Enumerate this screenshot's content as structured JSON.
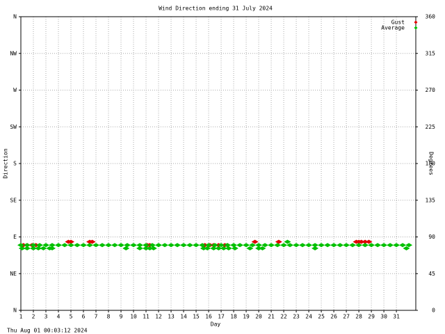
{
  "chart_data": {
    "type": "scatter",
    "title": "Wind Direction ending 31 July 2024",
    "y_label": "Direction",
    "y2_label": "Degrees",
    "x_label": "Day",
    "timestamp": "Thu Aug 01 00:03:12 2024",
    "xlim": [
      1,
      32.55
    ],
    "xticks": [
      1,
      2,
      3,
      4,
      5,
      6,
      7,
      8,
      9,
      10,
      11,
      12,
      13,
      14,
      15,
      16,
      17,
      18,
      19,
      20,
      21,
      22,
      23,
      24,
      25,
      26,
      27,
      28,
      29,
      30,
      31
    ],
    "ylim": [
      0,
      360
    ],
    "yticks": [
      {
        "value": 0,
        "label": "N"
      },
      {
        "value": 45,
        "label": "NE"
      },
      {
        "value": 90,
        "label": "E"
      },
      {
        "value": 135,
        "label": "SE"
      },
      {
        "value": 180,
        "label": "S"
      },
      {
        "value": 225,
        "label": "SW"
      },
      {
        "value": 270,
        "label": "W"
      },
      {
        "value": 315,
        "label": "NW"
      },
      {
        "value": 360,
        "label": "N"
      }
    ],
    "y2lim": [
      0,
      360
    ],
    "y2ticks": [
      0,
      45,
      90,
      135,
      180,
      225,
      270,
      315,
      360
    ],
    "grid": true,
    "legend": "top-right",
    "series": [
      {
        "name": "Gust",
        "color": "#e00000",
        "x": [
          1.2,
          1.5,
          1.9,
          2.2,
          4.8,
          5.0,
          6.5,
          6.7,
          11.1,
          11.3,
          15.7,
          16.1,
          16.4,
          16.8,
          17.3,
          17.5,
          19.7,
          21.6,
          27.8,
          28.0,
          28.2,
          28.5,
          28.8
        ],
        "values": [
          80,
          80,
          80,
          80,
          84,
          84,
          84,
          84,
          80,
          80,
          80,
          80,
          80,
          80,
          80,
          80,
          84,
          84,
          84,
          84,
          84,
          84,
          84
        ]
      },
      {
        "name": "Average",
        "color": "#00c000",
        "x": [
          1,
          1.5,
          2,
          2.5,
          3,
          3.5,
          4,
          4.5,
          5,
          5.5,
          6,
          6.5,
          7,
          7.5,
          8,
          8.5,
          9,
          9.5,
          10,
          10.5,
          11,
          11.5,
          12,
          12.5,
          13,
          13.5,
          14,
          14.5,
          15,
          15.5,
          16,
          16.5,
          17,
          17.5,
          18,
          18.5,
          19,
          19.5,
          20,
          20.5,
          21,
          21.5,
          22,
          22.5,
          23,
          23.5,
          24,
          24.5,
          25,
          25.5,
          26,
          26.5,
          27,
          27.5,
          28,
          28.5,
          29,
          29.5,
          30,
          30.5,
          31,
          31.5,
          32,
          1.1,
          1.5,
          2.0,
          2.4,
          2.8,
          3.3,
          3.5,
          9.4,
          10.5,
          11.0,
          11.3,
          11.6,
          15.6,
          15.9,
          16.4,
          16.8,
          17.2,
          17.6,
          18.1,
          19.3,
          20.0,
          20.3,
          24.5,
          31.8,
          22.3
        ],
        "values": [
          80,
          80,
          80,
          80,
          80,
          80,
          80,
          80,
          80,
          80,
          80,
          80,
          80,
          80,
          80,
          80,
          80,
          80,
          80,
          80,
          80,
          80,
          80,
          80,
          80,
          80,
          80,
          80,
          80,
          80,
          80,
          80,
          80,
          80,
          80,
          80,
          80,
          80,
          80,
          80,
          80,
          80,
          80,
          80,
          80,
          80,
          80,
          80,
          80,
          80,
          80,
          80,
          80,
          80,
          80,
          80,
          80,
          80,
          80,
          80,
          80,
          80,
          80,
          76,
          76,
          76,
          76,
          76,
          76,
          76,
          76,
          76,
          76,
          76,
          76,
          76,
          76,
          76,
          76,
          76,
          76,
          76,
          76,
          76,
          76,
          76,
          76,
          84
        ]
      }
    ]
  }
}
